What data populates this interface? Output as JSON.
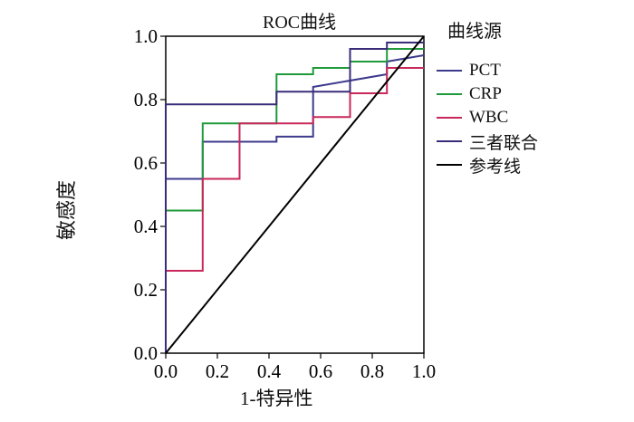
{
  "chart_data": {
    "type": "line",
    "title": "ROC曲线",
    "xlabel": "1-特异性",
    "ylabel": "敏感度",
    "xlim": [
      0.0,
      1.0
    ],
    "ylim": [
      0.0,
      1.0
    ],
    "xticks": [
      "0.0",
      "0.2",
      "0.4",
      "0.6",
      "0.8",
      "1.0"
    ],
    "yticks": [
      "0.0",
      "0.2",
      "0.4",
      "0.6",
      "0.8",
      "1.0"
    ],
    "grid": false,
    "legend_title": "曲线源",
    "legend_position": "right",
    "series": [
      {
        "name": "PCT",
        "color": "#3d3a8c",
        "points": [
          [
            0,
            0
          ],
          [
            0,
            0.55
          ],
          [
            0.143,
            0.55
          ],
          [
            0.143,
            0.667
          ],
          [
            0.429,
            0.667
          ],
          [
            0.429,
            0.683
          ],
          [
            0.571,
            0.683
          ],
          [
            0.571,
            0.84
          ],
          [
            0.857,
            0.88
          ],
          [
            0.857,
            0.92
          ],
          [
            1.0,
            0.94
          ]
        ]
      },
      {
        "name": "CRP",
        "color": "#1f9a3a",
        "points": [
          [
            0,
            0
          ],
          [
            0,
            0.45
          ],
          [
            0.143,
            0.45
          ],
          [
            0.143,
            0.725
          ],
          [
            0.429,
            0.725
          ],
          [
            0.429,
            0.88
          ],
          [
            0.571,
            0.88
          ],
          [
            0.571,
            0.9
          ],
          [
            0.714,
            0.9
          ],
          [
            0.714,
            0.92
          ],
          [
            0.857,
            0.92
          ],
          [
            0.857,
            0.96
          ],
          [
            1.0,
            0.96
          ]
        ]
      },
      {
        "name": "WBC",
        "color": "#c8285a",
        "points": [
          [
            0,
            0
          ],
          [
            0,
            0.26
          ],
          [
            0.143,
            0.26
          ],
          [
            0.143,
            0.55
          ],
          [
            0.286,
            0.55
          ],
          [
            0.286,
            0.725
          ],
          [
            0.571,
            0.725
          ],
          [
            0.571,
            0.745
          ],
          [
            0.714,
            0.745
          ],
          [
            0.714,
            0.82
          ],
          [
            0.857,
            0.82
          ],
          [
            0.857,
            0.9
          ],
          [
            1.0,
            0.9
          ]
        ]
      },
      {
        "name": "三者联合",
        "color": "#3a2c7a",
        "points": [
          [
            0,
            0
          ],
          [
            0,
            0.785
          ],
          [
            0.429,
            0.785
          ],
          [
            0.429,
            0.825
          ],
          [
            0.714,
            0.825
          ],
          [
            0.714,
            0.96
          ],
          [
            0.857,
            0.96
          ],
          [
            0.857,
            0.98
          ],
          [
            1.0,
            0.98
          ]
        ]
      },
      {
        "name": "参考线",
        "color": "#000000",
        "points": [
          [
            0,
            0
          ],
          [
            1,
            1
          ]
        ]
      }
    ]
  }
}
